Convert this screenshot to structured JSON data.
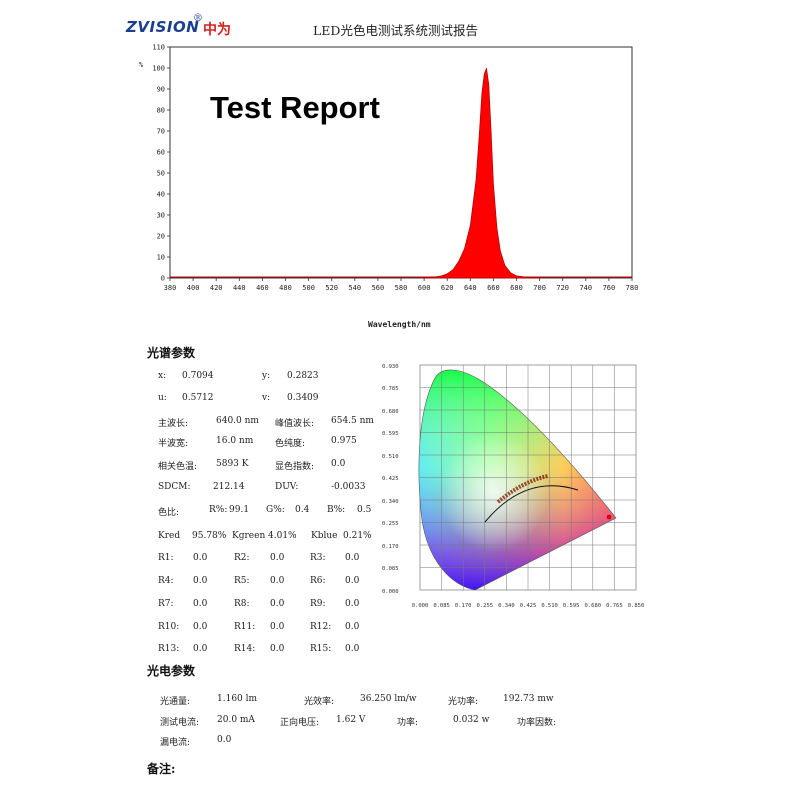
{
  "header": {
    "brand": "ZVISION",
    "brand_cn": "中为",
    "brand_mark": "®",
    "title": "LED光色电测试系统测试报告"
  },
  "overlay_text": "Test Report",
  "chart_data": {
    "type": "line",
    "title": "",
    "xlabel": "Wavelength/nm",
    "ylabel": "%",
    "xlim": [
      380,
      780
    ],
    "ylim": [
      0,
      110
    ],
    "xticks": [
      380,
      400,
      420,
      440,
      460,
      480,
      500,
      520,
      540,
      560,
      580,
      600,
      620,
      640,
      660,
      680,
      700,
      720,
      740,
      760,
      780
    ],
    "yticks": [
      0,
      10,
      20,
      30,
      40,
      50,
      60,
      70,
      80,
      90,
      100,
      110
    ],
    "fill_color": "#ff0000",
    "series": [
      {
        "x": [
          600,
          610,
          615,
          620,
          625,
          630,
          635,
          640,
          645,
          648,
          650,
          652,
          654,
          656,
          658,
          660,
          663,
          666,
          670,
          675,
          680,
          690,
          700
        ],
        "y": [
          0,
          0.5,
          1,
          2,
          4,
          8,
          14,
          25,
          47,
          70,
          88,
          97,
          100,
          92,
          70,
          45,
          24,
          13,
          6,
          2.5,
          1,
          0.3,
          0
        ]
      }
    ]
  },
  "cie": {
    "xticks": [
      "0.000",
      "0.085",
      "0.170",
      "0.255",
      "0.340",
      "0.425",
      "0.510",
      "0.595",
      "0.680",
      "0.765",
      "0.850"
    ],
    "yticks": [
      "0.930",
      "0.785",
      "0.680",
      "0.595",
      "0.510",
      "0.425",
      "0.340",
      "0.255",
      "0.170",
      "0.085",
      "0.000"
    ]
  },
  "spectral": {
    "title": "光谱参数",
    "x_label": "x:",
    "x_val": "0.7094",
    "y_label": "y:",
    "y_val": "0.2823",
    "u_label": "u:",
    "u_val": "0.5712",
    "v_label": "v:",
    "v_val": "0.3409",
    "dom_label": "主波长:",
    "dom_val": "640.0 nm",
    "peak_label": "峰值波长:",
    "peak_val": "654.5 nm",
    "hw_label": "半波宽:",
    "hw_val": "16.0 nm",
    "purity_label": "色纯度:",
    "purity_val": "0.975",
    "cct_label": "相关色温:",
    "cct_val": "5893 K",
    "cri_label": "显色指数:",
    "cri_val": "0.0",
    "sdcm_label": "SDCM:",
    "sdcm_val": "212.14",
    "duv_label": "DUV:",
    "duv_val": "-0.0033",
    "ratio_label": "色比:",
    "r_label": "R%:",
    "r_val": "99.1",
    "g_label": "G%:",
    "g_val": "0.4",
    "b_label": "B%:",
    "b_val": "0.5",
    "kred_label": "Kred",
    "kred_val": "95.78%",
    "kgreen_label": "Kgreen",
    "kgreen_val": "4.01%",
    "kblue_label": "Kblue",
    "kblue_val": "0.21%",
    "r_rows": [
      [
        "R1:",
        "0.0",
        "R2:",
        "0.0",
        "R3:",
        "0.0"
      ],
      [
        "R4:",
        "0.0",
        "R5:",
        "0.0",
        "R6:",
        "0.0"
      ],
      [
        "R7:",
        "0.0",
        "R8:",
        "0.0",
        "R9:",
        "0.0"
      ],
      [
        "R10:",
        "0.0",
        "R11:",
        "0.0",
        "R12:",
        "0.0"
      ],
      [
        "R13:",
        "0.0",
        "R14:",
        "0.0",
        "R15:",
        "0.0"
      ]
    ]
  },
  "photo": {
    "title": "光电参数",
    "flux_label": "光通量:",
    "flux_val": "1.160 lm",
    "eff_label": "光效率:",
    "eff_val": "36.250 lm/w",
    "power_label": "光功率:",
    "power_val": "192.73 mw",
    "cur_label": "测试电流:",
    "cur_val": "20.0 mA",
    "volt_label": "正向电压:",
    "volt_val": "1.62 V",
    "watt_label": "功率:",
    "watt_val": "0.032 w",
    "pf_label": "功率因数:",
    "pf_val": "",
    "leak_label": "漏电流:",
    "leak_val": "0.0"
  },
  "notes": {
    "label": "备注:"
  }
}
